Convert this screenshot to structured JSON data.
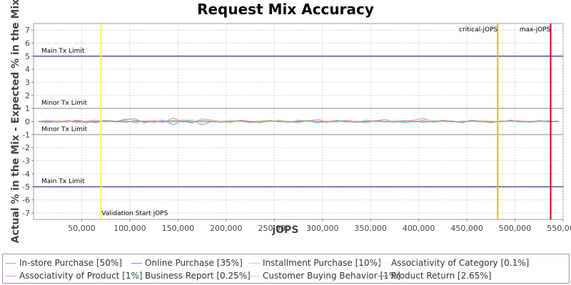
{
  "chart_data": {
    "type": "line",
    "title": "Request Mix Accuracy",
    "xlabel": "jOPS",
    "ylabel": "Actual % in the Mix - Expected % in the Mix",
    "xlim": [
      0,
      550000
    ],
    "ylim": [
      -7.5,
      7.5
    ],
    "x_ticks": [
      50000,
      100000,
      150000,
      200000,
      250000,
      300000,
      350000,
      400000,
      450000,
      500000,
      550000
    ],
    "x_tick_labels": [
      "50,000",
      "100,000",
      "150,000",
      "200,000",
      "250,000",
      "300,000",
      "350,000",
      "400,000",
      "450,000",
      "500,000",
      "550,000"
    ],
    "y_ticks": [
      7,
      6,
      5,
      4,
      3,
      2,
      1,
      0,
      -1,
      -2,
      -3,
      -4,
      -5,
      -6,
      -7
    ],
    "y_tick_labels": [
      "7",
      "6",
      "5",
      "4",
      "3",
      "2",
      "1",
      "0",
      "-1",
      "-2",
      "-3",
      "-4",
      "-5",
      "-6",
      "-7"
    ],
    "grid": true,
    "legend_position": "bottom",
    "horizontal_lines": [
      {
        "y": 5,
        "label": "Main Tx Limit",
        "color": "#000066",
        "label_side": "above"
      },
      {
        "y": 1,
        "label": "Minor Tx Limit",
        "color": "#888888",
        "label_side": "above"
      },
      {
        "y": -1,
        "label": "Minor Tx Limit",
        "color": "#888888",
        "label_side": "above"
      },
      {
        "y": -5,
        "label": "Main Tx Limit",
        "color": "#000066",
        "label_side": "above"
      }
    ],
    "vertical_lines": [
      {
        "x": 70000,
        "label": "Validation Start jOPS",
        "color": "#ffff33",
        "label_pos": "bottom"
      },
      {
        "x": 482000,
        "label": "critical-jOPS",
        "color": "#ffbb00",
        "label_pos": "top"
      },
      {
        "x": 537000,
        "label": "max-jOPS",
        "color": "#cc0000",
        "label_pos": "top"
      }
    ],
    "x": [
      5000,
      15000,
      25000,
      35000,
      45000,
      55000,
      65000,
      75000,
      85000,
      95000,
      105000,
      115000,
      125000,
      135000,
      145000,
      155000,
      165000,
      175000,
      185000,
      195000,
      205000,
      215000,
      225000,
      235000,
      245000,
      255000,
      265000,
      275000,
      285000,
      295000,
      305000,
      315000,
      325000,
      335000,
      345000,
      355000,
      365000,
      375000,
      385000,
      395000,
      405000,
      415000,
      425000,
      435000,
      445000,
      455000,
      465000,
      475000,
      485000,
      495000,
      505000,
      515000,
      525000,
      535000,
      545000
    ],
    "series": [
      {
        "name": "In-store Purchase [50%]",
        "color": "#ff8080",
        "values": [
          0.0,
          0.1,
          -0.05,
          0.05,
          -0.1,
          0.05,
          0.1,
          -0.05,
          0.0,
          0.1,
          -0.1,
          0.05,
          0.0,
          -0.05,
          0.25,
          0.0,
          -0.1,
          0.2,
          0.1,
          0.0,
          -0.1,
          0.1,
          0.0,
          0.05,
          -0.05,
          0.1,
          0.0,
          -0.1,
          0.05,
          0.15,
          0.0,
          -0.05,
          0.1,
          0.0,
          -0.1,
          0.05,
          0.15,
          -0.05,
          0.0,
          0.1,
          0.25,
          -0.05,
          0.1,
          0.0,
          -0.05,
          0.1,
          0.0,
          -0.1,
          0.05,
          0.0,
          0.1,
          -0.05,
          0.0,
          0.05,
          0.0
        ]
      },
      {
        "name": "Online Purchase [35%]",
        "color": "#8080ff",
        "values": [
          0.0,
          -0.1,
          0.05,
          -0.05,
          0.1,
          0.0,
          -0.1,
          0.05,
          0.0,
          0.15,
          0.2,
          -0.1,
          0.05,
          0.1,
          -0.25,
          0.05,
          0.1,
          -0.25,
          0.0,
          -0.05,
          0.1,
          0.0,
          -0.1,
          0.0,
          0.05,
          0.0,
          -0.05,
          0.1,
          0.0,
          -0.1,
          0.0,
          0.1,
          0.0,
          -0.05,
          0.1,
          0.0,
          -0.05,
          0.05,
          -0.1,
          0.0,
          0.1,
          -0.05,
          0.0,
          0.05,
          -0.1,
          0.05,
          0.0,
          0.05,
          -0.05,
          0.1,
          0.0,
          -0.05,
          0.05,
          0.0,
          0.05
        ]
      },
      {
        "name": "Installment Purchase [10%]",
        "color": "#80ff80",
        "values": [
          0.0,
          0.05,
          -0.05,
          0.0,
          0.05,
          -0.1,
          0.0,
          0.05,
          -0.05,
          0.0,
          0.05,
          -0.05,
          0.1,
          0.0,
          -0.05,
          0.0,
          0.05,
          -0.05,
          0.0,
          0.05,
          -0.05,
          0.0,
          0.05,
          -0.1,
          0.0,
          0.05,
          -0.05,
          0.0,
          0.05,
          -0.05,
          0.0,
          0.05,
          -0.05,
          0.0,
          0.05,
          -0.05,
          0.0,
          0.05,
          -0.05,
          0.0,
          0.05,
          -0.05,
          0.0,
          0.05,
          -0.05,
          0.0,
          0.05,
          -0.05,
          0.0,
          0.05,
          -0.05,
          0.0,
          0.05,
          -0.05,
          0.0
        ]
      },
      {
        "name": "Associativity of Category [0.1%]",
        "color": "#ffff80",
        "values": [
          0.0,
          0.0,
          0.05,
          0.0,
          -0.05,
          0.0,
          0.05,
          0.0,
          -0.05,
          0.0,
          0.05,
          0.0,
          -0.05,
          0.0,
          0.05,
          0.0,
          -0.05,
          0.0,
          0.05,
          0.0,
          -0.05,
          0.0,
          0.05,
          0.0,
          -0.05,
          0.0,
          0.05,
          0.0,
          -0.05,
          0.0,
          0.05,
          0.0,
          -0.05,
          0.0,
          0.05,
          0.0,
          -0.05,
          0.0,
          0.05,
          0.0,
          -0.05,
          0.0,
          0.05,
          0.0,
          -0.05,
          0.0,
          0.05,
          0.0,
          -0.05,
          0.0,
          0.05,
          0.0,
          -0.05,
          0.0,
          0.0
        ]
      },
      {
        "name": "Associativity of Product [1%]",
        "color": "#ff80ff",
        "values": [
          0.0,
          0.05,
          0.0,
          -0.05,
          0.05,
          0.0,
          -0.05,
          0.0,
          0.05,
          -0.05,
          0.0,
          0.05,
          0.0,
          -0.05,
          0.05,
          0.0,
          -0.05,
          0.05,
          0.0,
          -0.05,
          0.0,
          0.05,
          0.0,
          -0.05,
          0.05,
          0.0,
          -0.05,
          0.0,
          0.05,
          0.0,
          -0.05,
          0.05,
          0.0,
          -0.05,
          0.0,
          0.05,
          0.0,
          -0.05,
          0.05,
          0.0,
          -0.05,
          0.0,
          0.05,
          0.0,
          -0.05,
          0.05,
          0.0,
          -0.05,
          0.0,
          0.05,
          0.0,
          -0.05,
          0.0,
          0.05,
          0.0
        ]
      },
      {
        "name": "Business Report [0.25%]",
        "color": "#80ffff",
        "values": [
          0.0,
          -0.05,
          0.0,
          0.05,
          0.0,
          -0.05,
          0.05,
          0.0,
          -0.05,
          0.0,
          0.05,
          0.0,
          -0.05,
          0.05,
          0.0,
          -0.05,
          0.0,
          0.05,
          -0.05,
          0.0,
          0.05,
          0.0,
          -0.05,
          0.0,
          0.05,
          -0.05,
          0.0,
          0.05,
          0.0,
          -0.05,
          0.05,
          0.0,
          -0.05,
          0.0,
          0.05,
          0.0,
          -0.05,
          0.05,
          0.0,
          -0.05,
          0.0,
          0.05,
          0.0,
          -0.05,
          0.05,
          0.0,
          -0.05,
          0.0,
          0.05,
          0.0,
          -0.05,
          0.05,
          0.0,
          -0.05,
          0.0
        ]
      },
      {
        "name": "Customer Buying Behavior [1%]",
        "color": "#ffc0b0",
        "values": [
          0.0,
          0.05,
          0.1,
          0.0,
          -0.05,
          0.05,
          0.0,
          0.1,
          0.05,
          -0.05,
          0.0,
          0.05,
          0.1,
          0.0,
          0.05,
          0.15,
          0.1,
          0.05,
          0.0,
          0.05,
          0.1,
          0.0,
          -0.05,
          0.05,
          0.1,
          0.0,
          0.05,
          -0.05,
          0.1,
          0.0,
          0.05,
          0.1,
          0.0,
          0.05,
          -0.05,
          0.05,
          0.0,
          0.1,
          0.05,
          0.0,
          0.05,
          0.1,
          0.0,
          -0.05,
          0.05,
          0.0,
          0.1,
          0.05,
          0.0,
          0.05,
          0.1,
          0.0,
          0.05,
          0.0,
          0.05
        ]
      },
      {
        "name": "Product Return [2.65%]",
        "color": "#808080",
        "values": [
          0.0,
          0.0,
          -0.05,
          0.05,
          0.0,
          -0.05,
          0.0,
          0.05,
          0.0,
          -0.05,
          0.05,
          0.0,
          -0.05,
          0.0,
          0.05,
          0.0,
          -0.05,
          0.05,
          0.0,
          -0.05,
          0.0,
          0.05,
          0.0,
          -0.05,
          0.05,
          0.0,
          -0.05,
          0.0,
          0.05,
          0.0,
          -0.05,
          0.05,
          0.0,
          -0.05,
          0.0,
          0.05,
          0.0,
          -0.05,
          0.05,
          0.0,
          -0.05,
          0.0,
          0.05,
          0.0,
          -0.05,
          0.05,
          0.0,
          -0.05,
          0.0,
          0.05,
          0.0,
          -0.05,
          0.05,
          0.0,
          0.0
        ]
      }
    ]
  }
}
